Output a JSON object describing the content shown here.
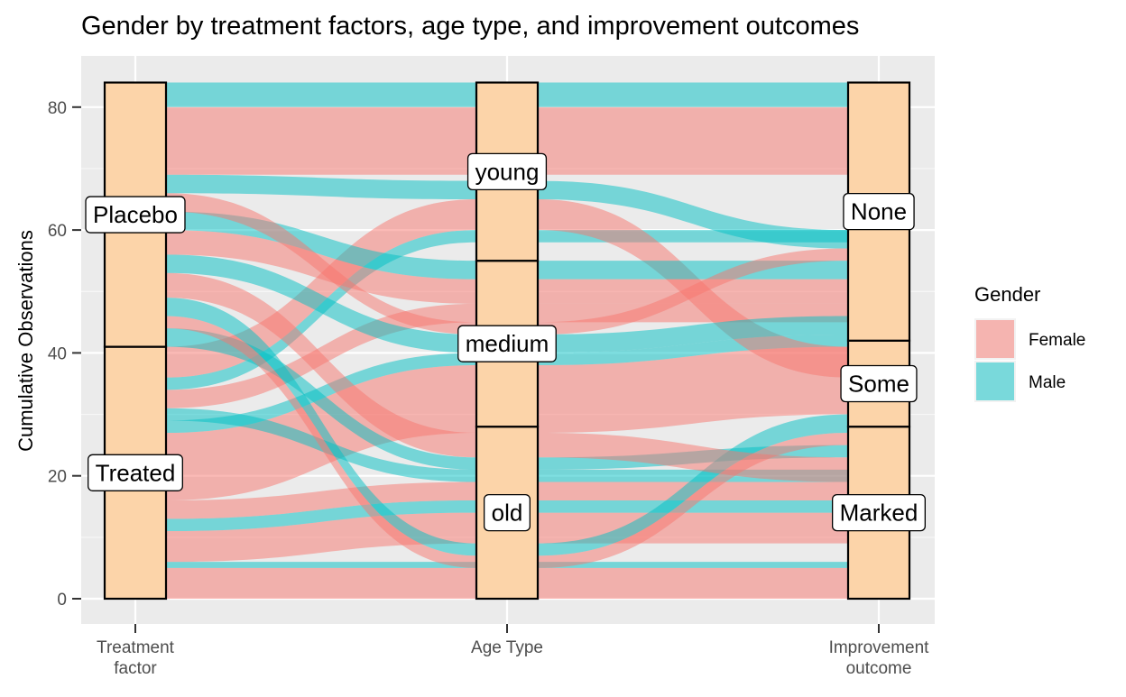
{
  "chart_data": {
    "type": "alluvial",
    "title": "Gender by treatment factors, age type, and improvement outcomes",
    "xlabel": "",
    "ylabel": "Cumulative Observations",
    "ylim": [
      -4,
      88
    ],
    "y_ticks": [
      0,
      20,
      40,
      60,
      80
    ],
    "grid": true,
    "legend": {
      "title": "Gender",
      "position": "right"
    },
    "axes": [
      {
        "label": "Treatment\nfactor",
        "strata": [
          {
            "name": "Treated",
            "from": 0,
            "to": 41
          },
          {
            "name": "Placebo",
            "from": 41,
            "to": 84
          }
        ]
      },
      {
        "label": "Age Type",
        "strata": [
          {
            "name": "old",
            "from": 0,
            "to": 28
          },
          {
            "name": "medium",
            "from": 28,
            "to": 55
          },
          {
            "name": "young",
            "from": 55,
            "to": 84
          }
        ]
      },
      {
        "label": "Improvement\noutcome",
        "strata": [
          {
            "name": "Marked",
            "from": 0,
            "to": 28
          },
          {
            "name": "Some",
            "from": 28,
            "to": 42
          },
          {
            "name": "None",
            "from": 42,
            "to": 84
          }
        ]
      }
    ],
    "series": [
      {
        "name": "Female",
        "color": "#F8766D"
      },
      {
        "name": "Male",
        "color": "#00BFC4"
      }
    ],
    "flows": [
      {
        "gender": "Female",
        "from": [
          0,
          5,
          0,
          5,
          0,
          5
        ]
      },
      {
        "gender": "Male",
        "from": [
          5,
          6,
          5,
          6,
          5,
          6
        ]
      },
      {
        "gender": "Female",
        "from": [
          6,
          11,
          9,
          14,
          9,
          14
        ]
      },
      {
        "gender": "Male",
        "from": [
          11,
          13,
          14,
          16,
          14,
          16
        ]
      },
      {
        "gender": "Female",
        "from": [
          13,
          16,
          16,
          19,
          16,
          19
        ]
      },
      {
        "gender": "Female",
        "from": [
          16,
          27,
          27,
          38,
          30,
          41
        ]
      },
      {
        "gender": "Male",
        "from": [
          27,
          29,
          38,
          40,
          41,
          43
        ]
      },
      {
        "gender": "Male",
        "from": [
          29,
          31,
          19,
          21,
          19,
          21
        ]
      },
      {
        "gender": "Female",
        "from": [
          31,
          34,
          45,
          48,
          45,
          48
        ]
      },
      {
        "gender": "Male",
        "from": [
          34,
          36,
          58,
          60,
          58,
          60
        ]
      },
      {
        "gender": "Female",
        "from": [
          36,
          41,
          60,
          65,
          36,
          41
        ]
      },
      {
        "gender": "Male",
        "from": [
          41,
          44,
          21,
          23,
          23,
          25
        ]
      },
      {
        "gender": "Female",
        "from": [
          44,
          46,
          5,
          7,
          25,
          27
        ]
      },
      {
        "gender": "Male",
        "from": [
          46,
          49,
          7,
          9,
          27,
          30
        ]
      },
      {
        "gender": "Female",
        "from": [
          49,
          53,
          23,
          27,
          19,
          23
        ]
      },
      {
        "gender": "Male",
        "from": [
          53,
          56,
          40,
          43,
          43,
          46
        ]
      },
      {
        "gender": "Female",
        "from": [
          56,
          60,
          48,
          52,
          48,
          52
        ]
      },
      {
        "gender": "Male",
        "from": [
          60,
          63,
          52,
          55,
          52,
          55
        ]
      },
      {
        "gender": "Female",
        "from": [
          63,
          66,
          43,
          45,
          55,
          57
        ]
      },
      {
        "gender": "Male",
        "from": [
          66,
          69,
          65,
          68,
          57,
          60
        ]
      },
      {
        "gender": "Female",
        "from": [
          69,
          80,
          69,
          80,
          69,
          80
        ]
      },
      {
        "gender": "Male",
        "from": [
          80,
          84,
          80,
          84,
          80,
          84
        ]
      }
    ]
  }
}
